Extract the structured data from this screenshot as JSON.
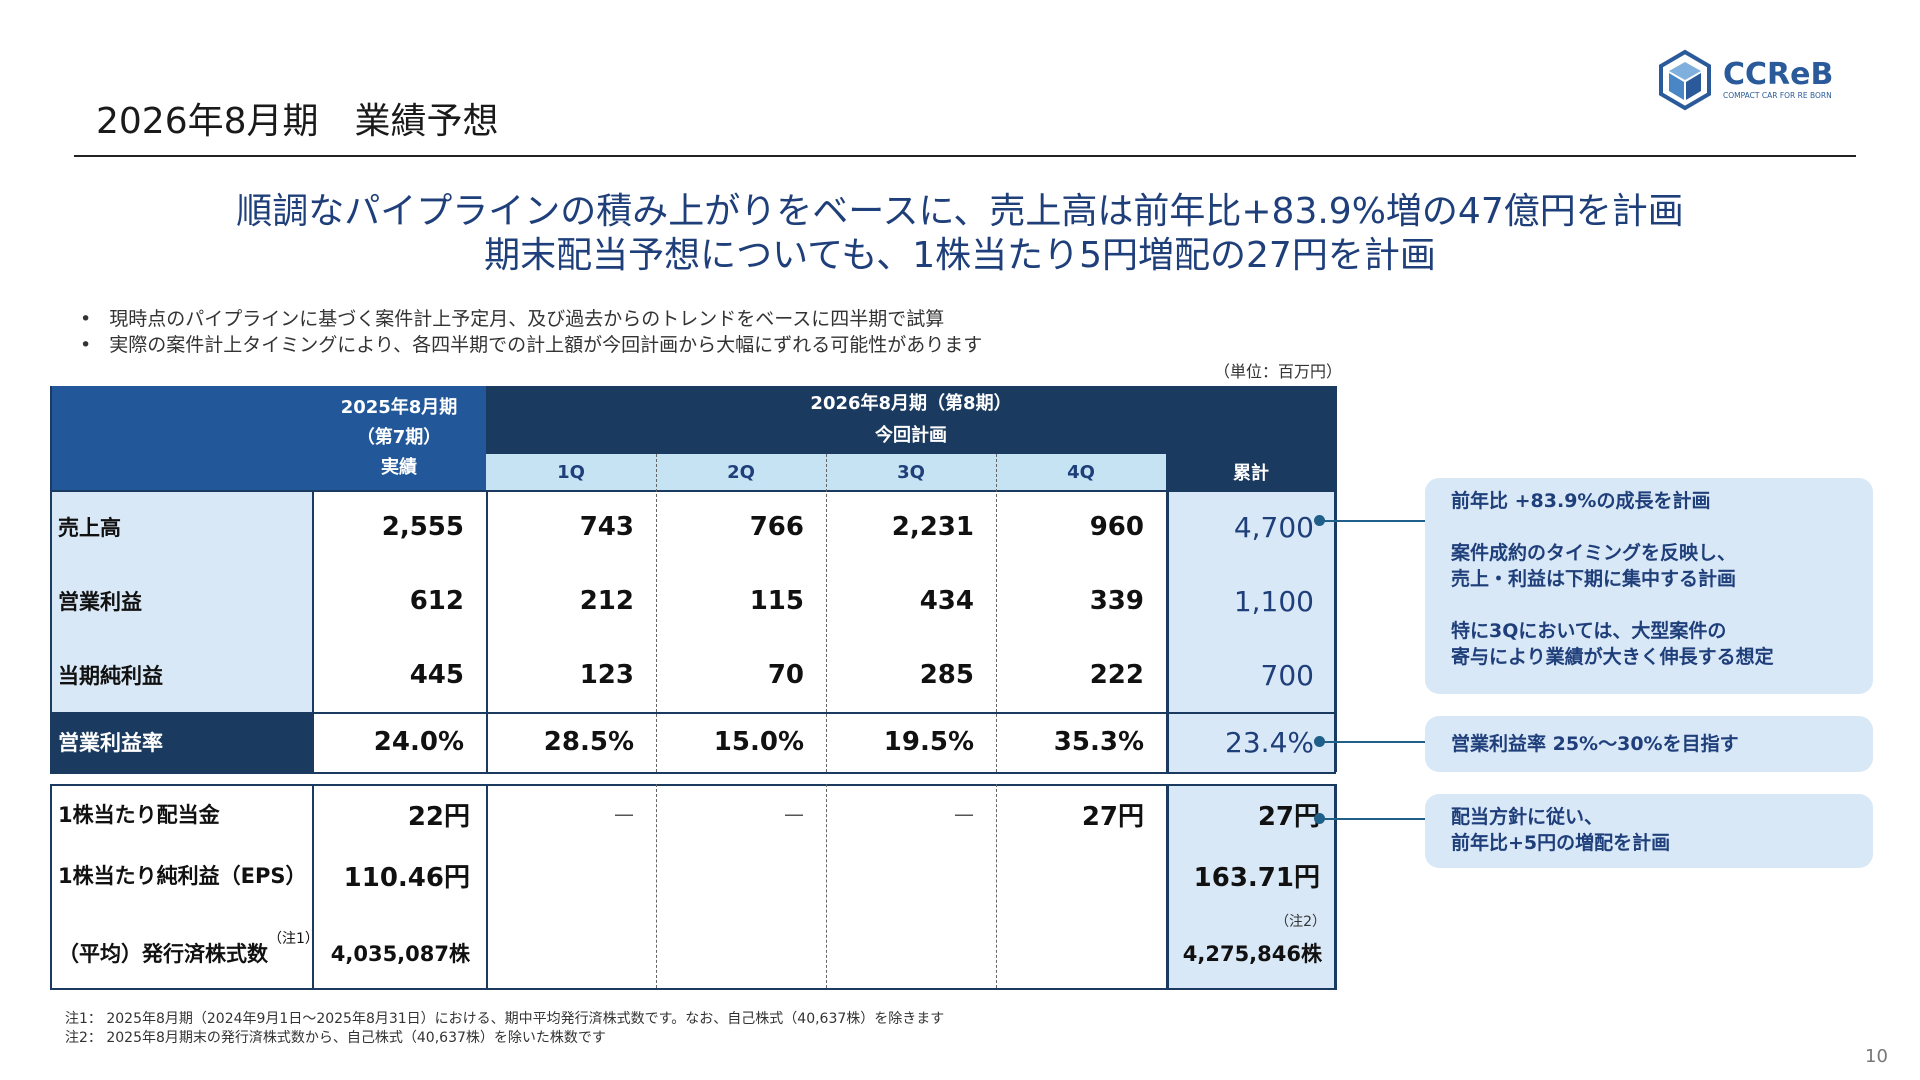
{
  "header": {
    "title": "2026年8月期　業績予想"
  },
  "logo": {
    "text": "CCReB",
    "tagline": "COMPACT CAR FOR RE BORN",
    "icon": "cube-icon",
    "color": "#2a5a9a"
  },
  "headline": {
    "line1": "順調なパイプラインの積み上がりをベースに、売上高は前年比+83.9%増の47億円を計画",
    "line2": "期末配当予想についても、1株当たり5円増配の27円を計画"
  },
  "bullets": [
    "現時点のパイプラインに基づく案件計上予定月、及び過去からのトレンドをベースに四半期で試算",
    "実際の案件計上タイミングにより、各四半期での計上額が今回計画から大幅にずれる可能性があります"
  ],
  "unit_note": "（単位：百万円）",
  "table": {
    "prev_header_line1": "2025年8月期",
    "prev_header_line2": "（第7期）",
    "prev_header_line3": "実績",
    "plan_header_line1": "2026年8月期（第8期）",
    "plan_header_line2": "今回計画",
    "quarters": [
      "1Q",
      "2Q",
      "3Q",
      "4Q"
    ],
    "cumulative_label": "累計",
    "rows": [
      {
        "label": "売上高",
        "prev": "2,555",
        "q": [
          "743",
          "766",
          "2,231",
          "960"
        ],
        "total": "4,700"
      },
      {
        "label": "営業利益",
        "prev": "612",
        "q": [
          "212",
          "115",
          "434",
          "339"
        ],
        "total": "1,100"
      },
      {
        "label": "当期純利益",
        "prev": "445",
        "q": [
          "123",
          "70",
          "285",
          "222"
        ],
        "total": "700"
      },
      {
        "label": "営業利益率",
        "prev": "24.0%",
        "q": [
          "28.5%",
          "15.0%",
          "19.5%",
          "35.3%"
        ],
        "total": "23.4%"
      }
    ],
    "dividend": {
      "label": "1株当たり配当金",
      "prev": "22円",
      "q": [
        "—",
        "—",
        "—",
        "27円"
      ],
      "total": "27円"
    },
    "eps": {
      "label": "1株当たり純利益（EPS）",
      "prev": "110.46円",
      "total": "163.71円"
    },
    "shares": {
      "label": "（平均）発行済株式数",
      "label_note": "（注1）",
      "prev": "4,035,087株",
      "total_note": "（注2）",
      "total": "4,275,846株"
    }
  },
  "callouts": {
    "c1_line1": "前年比 +83.9%の成長を計画",
    "c1_line2": "案件成約のタイミングを反映し、",
    "c1_line3": "売上・利益は下期に集中する計画",
    "c1_line4": "特に3Qにおいては、大型案件の",
    "c1_line5": "寄与により業績が大きく伸長する想定",
    "c2": "営業利益率 25%～30%を目指す",
    "c3_line1": "配当方針に従い、",
    "c3_line2": "前年比+5円の増配を計画"
  },
  "footnotes": [
    "注1： 2025年8月期（2024年9月1日～2025年8月31日）における、期中平均発行済株式数です。なお、自己株式（40,637株）を除きます",
    "注2： 2025年8月期末の発行済株式数から、自己株式（40,637株）を除いた株数です"
  ],
  "page_number": "10",
  "colors": {
    "navy": "#1b3a60",
    "mid_blue": "#22589a",
    "light_blue": "#c5e3f3",
    "pale_blue": "#d9e8f7",
    "text_blue": "#1f3f7a"
  }
}
